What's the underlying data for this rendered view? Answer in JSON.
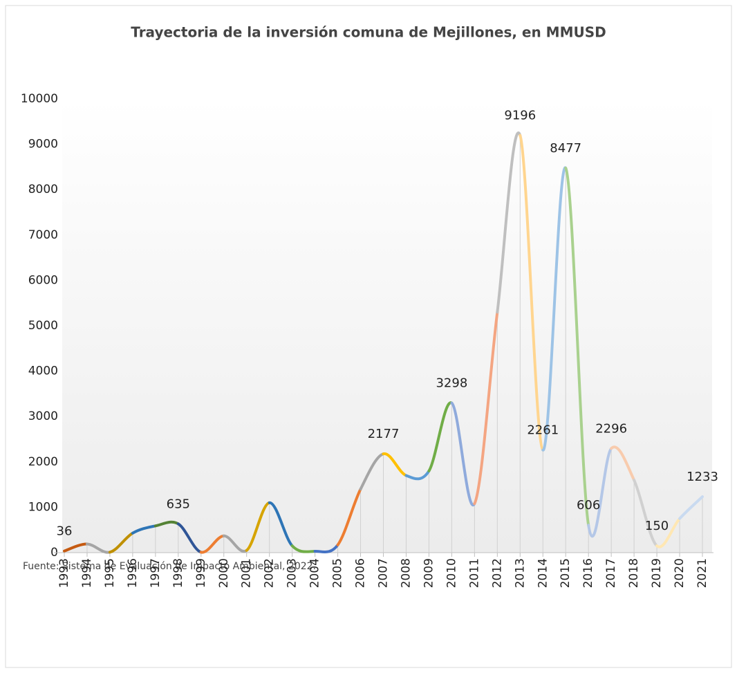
{
  "chart_data": {
    "type": "line",
    "title": "Trayectoria de la inversión comuna de Mejillones, en MMUSD",
    "source": "Fuente: Sistema de Evaluación de Impacto Ambiental, 2022.",
    "categories": [
      "1993",
      "1994",
      "1995",
      "1996",
      "1997",
      "1998",
      "1999",
      "2000",
      "2001",
      "2002",
      "2003",
      "2004",
      "2005",
      "2006",
      "2007",
      "2008",
      "2009",
      "2010",
      "2011",
      "2012",
      "2013",
      "2014",
      "2015",
      "2016",
      "2017",
      "2018",
      "2019",
      "2020",
      "2021"
    ],
    "values": [
      36,
      190,
      10,
      430,
      590,
      635,
      10,
      370,
      50,
      1100,
      150,
      30,
      170,
      1400,
      2177,
      1700,
      1800,
      3298,
      1080,
      5300,
      9196,
      2261,
      8477,
      606,
      2296,
      1600,
      150,
      750,
      1233
    ],
    "value_labels": [
      "36",
      null,
      null,
      null,
      null,
      "635",
      null,
      null,
      null,
      null,
      null,
      null,
      null,
      null,
      "2177",
      null,
      null,
      "3298",
      null,
      null,
      "9196",
      "2261",
      "8477",
      "606",
      "2296",
      null,
      "150",
      null,
      "1233"
    ],
    "segment_colors": [
      "#c55a11",
      "#a5a5a5",
      "#bf9000",
      "#2e75b6",
      "#548235",
      "#2f5597",
      "#ed7d31",
      "#a5a5a5",
      "#d6a400",
      "#2e75b6",
      "#70ad47",
      "#4472c4",
      "#ed7d31",
      "#a5a5a5",
      "#ffc000",
      "#5b9bd5",
      "#70ad47",
      "#8faadc",
      "#f4a582",
      "#bfbfbf",
      "#ffd58f",
      "#9dc3e6",
      "#a9d18e",
      "#b4c7e7",
      "#f8cbad",
      "#d0d0d0",
      "#ffe7b3",
      "#c9daf0"
    ],
    "drop_lines": true,
    "ylim": [
      0,
      10000
    ],
    "yticks": [
      0,
      1000,
      2000,
      3000,
      4000,
      5000,
      6000,
      7000,
      8000,
      9000,
      10000
    ]
  }
}
